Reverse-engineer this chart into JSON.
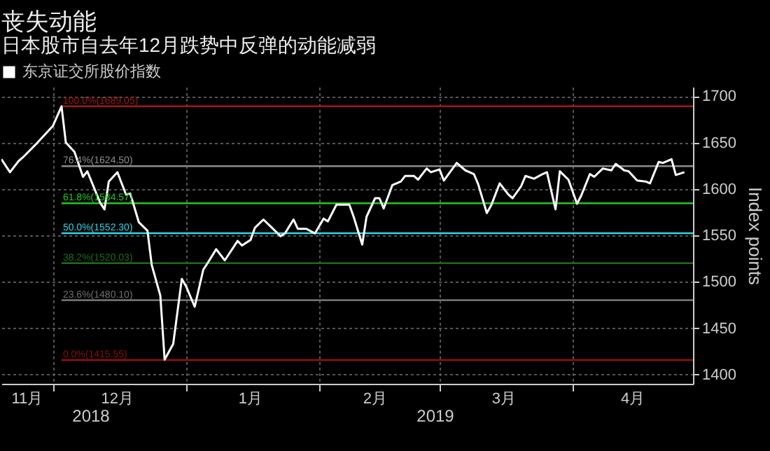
{
  "chart_data": {
    "type": "line",
    "title": "丧失动能",
    "subtitle": "日本股市自去年12月跌势中反弹的动能减弱",
    "ylabel": "Index points",
    "annotations": [
      "2018",
      "2019"
    ],
    "x": [
      "2018-11-19",
      "2018-11-21",
      "2018-11-23",
      "2018-11-24",
      "2018-11-27",
      "2018-11-29",
      "2018-12-01",
      "2018-12-03",
      "2018-12-04",
      "2018-12-06",
      "2018-12-08",
      "2018-12-09",
      "2018-12-12",
      "2018-12-13",
      "2018-12-14",
      "2018-12-16",
      "2018-12-18",
      "2018-12-19",
      "2018-12-21",
      "2018-12-23",
      "2018-12-24",
      "2018-12-26",
      "2018-12-27",
      "2018-12-29",
      "2018-12-31",
      "2019-01-01",
      "2019-01-03",
      "2019-01-05",
      "2019-01-06",
      "2019-01-08",
      "2019-01-10",
      "2019-01-11",
      "2019-01-13",
      "2019-01-14",
      "2019-01-16",
      "2019-01-17",
      "2019-01-19",
      "2019-01-21",
      "2019-01-23",
      "2019-01-24",
      "2019-01-26",
      "2019-01-27",
      "2019-01-29",
      "2019-01-31",
      "2019-02-02",
      "2019-02-03",
      "2019-02-05",
      "2019-02-08",
      "2019-02-09",
      "2019-02-11",
      "2019-02-12",
      "2019-02-14",
      "2019-02-15",
      "2019-02-16",
      "2019-02-18",
      "2019-02-20",
      "2019-02-21",
      "2019-02-23",
      "2019-02-24",
      "2019-02-26",
      "2019-02-27",
      "2019-03-01",
      "2019-03-02",
      "2019-03-05",
      "2019-03-07",
      "2019-03-09",
      "2019-03-10",
      "2019-03-12",
      "2019-03-13",
      "2019-03-15",
      "2019-03-17",
      "2019-03-18",
      "2019-03-20",
      "2019-03-21",
      "2019-03-23",
      "2019-03-25",
      "2019-03-26",
      "2019-03-28",
      "2019-03-29",
      "2019-03-31",
      "2019-04-02",
      "2019-04-03",
      "2019-04-05",
      "2019-04-06",
      "2019-04-08",
      "2019-04-10",
      "2019-04-11",
      "2019-04-13",
      "2019-04-14",
      "2019-04-16",
      "2019-04-18",
      "2019-04-19",
      "2019-04-21",
      "2019-04-22",
      "2019-04-24",
      "2019-04-25",
      "2019-04-27"
    ],
    "series": [
      {
        "name": "东京证交所股价指数",
        "color": "#ffffff",
        "values": [
          1632,
          1618,
          1630,
          1634,
          1648,
          1658,
          1668,
          1689,
          1650,
          1640,
          1613,
          1619,
          1585,
          1578,
          1608,
          1618,
          1594,
          1595,
          1564,
          1555,
          1518,
          1485,
          1416,
          1433,
          1503,
          1495,
          1473,
          1513,
          1520,
          1535,
          1523,
          1530,
          1544,
          1539,
          1545,
          1558,
          1567,
          1558,
          1549,
          1552,
          1567,
          1557,
          1557,
          1552,
          1568,
          1565,
          1583,
          1583,
          1570,
          1540,
          1570,
          1590,
          1590,
          1579,
          1604,
          1608,
          1614,
          1614,
          1610,
          1622,
          1618,
          1621,
          1609,
          1628,
          1620,
          1616,
          1605,
          1574,
          1582,
          1606,
          1594,
          1590,
          1603,
          1614,
          1611,
          1616,
          1618,
          1578,
          1619,
          1610,
          1584,
          1593,
          1616,
          1613,
          1622,
          1620,
          1627,
          1620,
          1619,
          1609,
          1608,
          1606,
          1629,
          1628,
          1632,
          1615,
          1618
        ]
      }
    ],
    "xlim": [
      "2018-11-19",
      "2019-04-29"
    ],
    "xticks": [
      {
        "value": "2018-11-25",
        "label": "11月"
      },
      {
        "value": "2018-12-01",
        "label": null
      },
      {
        "value": "2018-12-16",
        "label": "12月"
      },
      {
        "value": "2019-01-01",
        "label": null
      },
      {
        "value": "2019-01-16",
        "label": "1月"
      },
      {
        "value": "2019-02-01",
        "label": null
      },
      {
        "value": "2019-02-14",
        "label": "2月"
      },
      {
        "value": "2019-03-01",
        "label": null
      },
      {
        "value": "2019-03-16",
        "label": "3月"
      },
      {
        "value": "2019-04-01",
        "label": null
      },
      {
        "value": "2019-04-15",
        "label": "4月"
      }
    ],
    "ylim": [
      1390,
      1710
    ],
    "yticks": [
      1400,
      1450,
      1500,
      1550,
      1600,
      1650,
      1700
    ],
    "ref_lines": [
      {
        "axis": "y",
        "value": 1689.05,
        "label": "100.0%(1689.05)",
        "color": "#a01818"
      },
      {
        "axis": "y",
        "value": 1624.5,
        "label": "76.4%(1624.50)",
        "color": "#8c8c8c"
      },
      {
        "axis": "y",
        "value": 1584.57,
        "label": "61.8%(1584.57)",
        "color": "#22c822"
      },
      {
        "axis": "y",
        "value": 1552.3,
        "label": "50.0%(1552.30)",
        "color": "#30d8e8"
      },
      {
        "axis": "y",
        "value": 1520.03,
        "label": "38.2%(1520.03)",
        "color": "#1e6a1e"
      },
      {
        "axis": "y",
        "value": 1480.1,
        "label": "23.6%(1480.10)",
        "color": "#707070"
      },
      {
        "axis": "y",
        "value": 1415.55,
        "label": "0.0%(1415.55)",
        "color": "#8c1010"
      }
    ],
    "grid": true,
    "legend": "top left",
    "marker": "none",
    "line_style": "solid"
  }
}
